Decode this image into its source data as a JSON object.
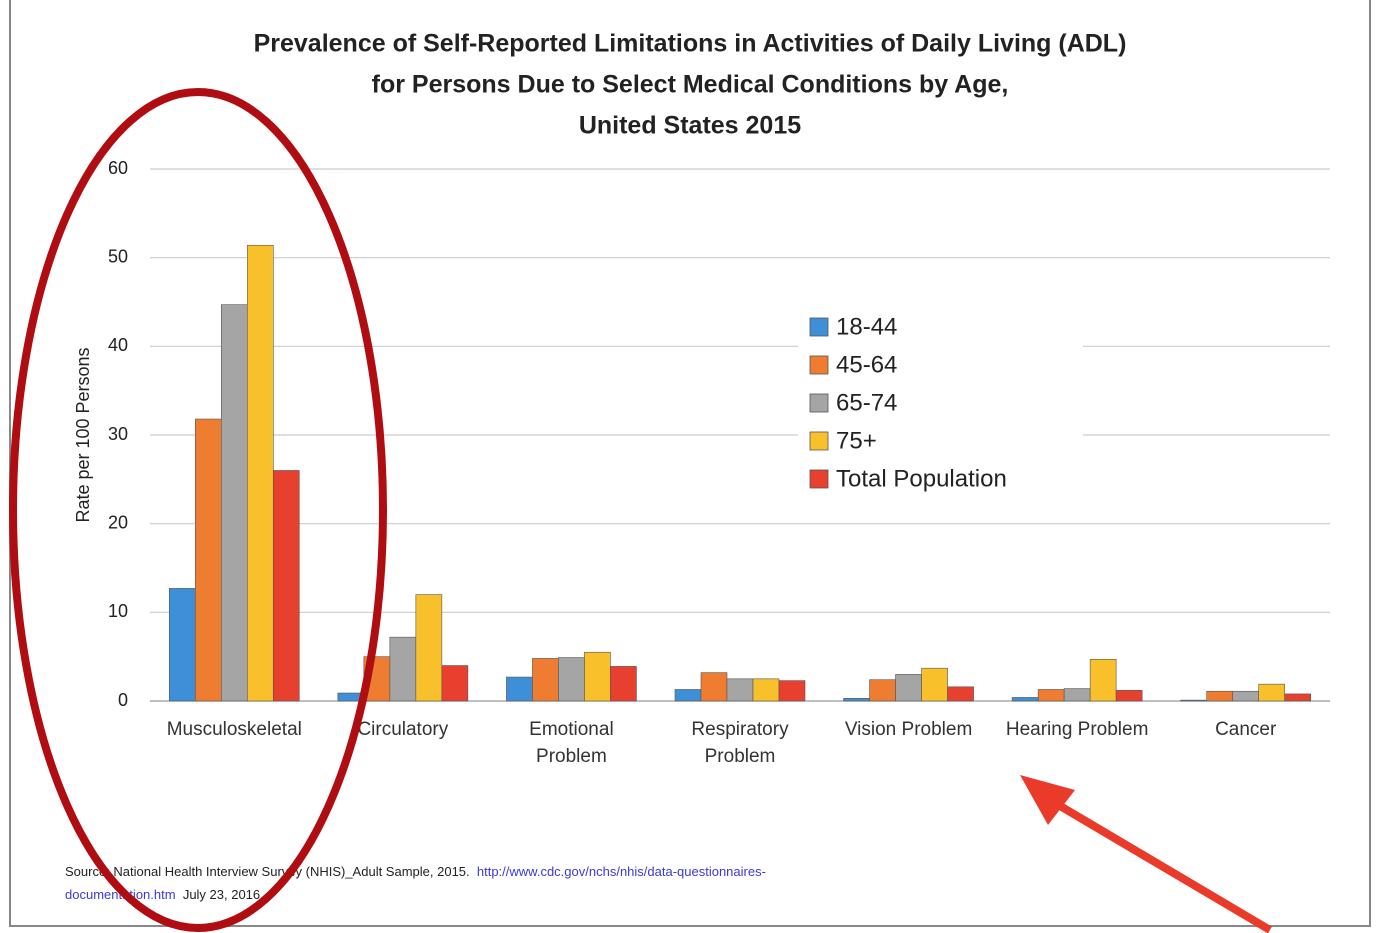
{
  "chart_data": {
    "type": "bar",
    "title": [
      "Prevalence of Self-Reported Limitations in Activities of Daily Living (ADL)",
      "for Persons Due to Select Medical Conditions by Age,",
      "United States 2015"
    ],
    "y_label": "Rate per 100 Persons",
    "categories": [
      "Musculoskeletal",
      "Circulatory",
      "Emotional\nProblem",
      "Respiratory\nProblem",
      "Vision Problem",
      "Hearing Problem",
      "Cancer"
    ],
    "series": [
      {
        "name": "18-44",
        "color": "#3f8fd8",
        "values": [
          12.7,
          0.9,
          2.7,
          1.3,
          0.3,
          0.4,
          0.1
        ]
      },
      {
        "name": "45-64",
        "color": "#ef7d31",
        "values": [
          31.8,
          5.0,
          4.8,
          3.2,
          2.4,
          1.3,
          1.1
        ]
      },
      {
        "name": "65-74",
        "color": "#a5a5a5",
        "values": [
          44.7,
          7.2,
          4.9,
          2.5,
          3.0,
          1.4,
          1.1
        ]
      },
      {
        "name": "75+",
        "color": "#f8c12c",
        "values": [
          51.4,
          12.0,
          5.5,
          2.5,
          3.7,
          4.7,
          1.9
        ]
      },
      {
        "name": "Total Population",
        "color": "#e8402e",
        "values": [
          26.0,
          4.0,
          3.9,
          2.3,
          1.6,
          1.2,
          0.8
        ]
      }
    ],
    "ylim": [
      0,
      60
    ],
    "yticks": [
      0,
      10,
      20,
      30,
      40,
      50,
      60
    ],
    "grid": true,
    "legend": "center",
    "source": {
      "text": "Source: National Health Interview Survey (NHIS)_Adult Sample, 2015.",
      "url": "http://www.cdc.gov/nchs/nhis/data-questionnaires-documentation.htm",
      "date": "July 23, 2016."
    }
  }
}
